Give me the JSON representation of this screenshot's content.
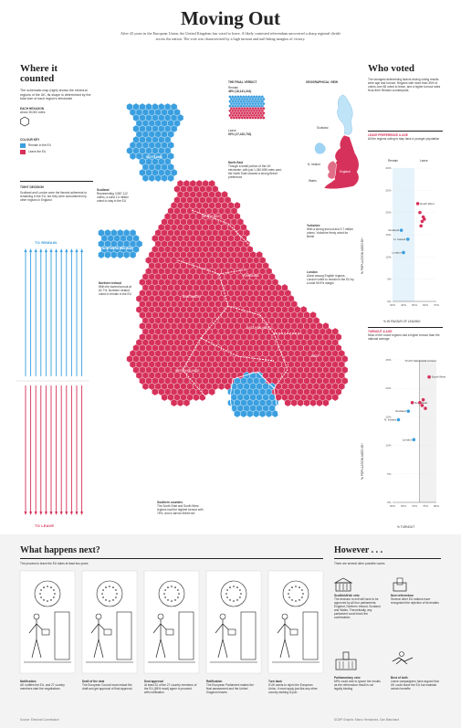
{
  "header": {
    "title": "Moving Out",
    "intro": "After 43 years in the European Union, the United Kingdom has voted to leave. A likely contested referendum uncovered a sharp regional divide across the nation. The vote was characterised by a high turnout and nail-biting margins of victory."
  },
  "colors": {
    "leave": "#d6315a",
    "remain": "#3a9fe0",
    "ink": "#222222"
  },
  "where_counted": {
    "heading": "Where it counted",
    "desc": "The schematic map (right) shows the electoral regions of the UK, its shape is determined by the total size of each region's electorate",
    "hex_label": "EACH HEXAGON",
    "hex_value": "About 35,000 votes",
    "key_title": "COLOUR KEY",
    "key_remain": "Remain in the EU",
    "key_leave": "Leave the EU"
  },
  "tight": {
    "heading": "TIGHT DECISION",
    "desc": "Scotland and London were the fiercest adherents to remaining in the EU, but they were outnumbered by other regions in England",
    "to_remain": "TO REMAIN",
    "to_leave": "TO LEAVE"
  },
  "verdict": {
    "heading": "THE FINAL VERDICT",
    "remain_label": "Remain",
    "remain_value": "48% (16,141,241)",
    "leave_label": "Leave",
    "leave_value": "52% (17,410,742)"
  },
  "geo": {
    "heading": "GEOGRAPHICAL VIEW",
    "labels": [
      "Scotland",
      "N. Ireland",
      "Wales",
      "England"
    ]
  },
  "map": {
    "regions": [
      "SCOTLAND",
      "NORTHERN IRELAND",
      "NORTH EAST",
      "NORTHWEST",
      "YORKSHIRE",
      "EAST MIDLANDS",
      "WEST MIDLANDS",
      "EAST",
      "WALES",
      "LONDON",
      "SOUTH WEST",
      "SOUTH EAST"
    ]
  },
  "annotations": {
    "scotland": {
      "title": "Scotland",
      "text": "Representing 3,987,112 voters, a solid 1.6 million voted to stay in the EU"
    },
    "northeast": {
      "title": "North East",
      "text": "Though a small portion of the UK electorate, with just 1,340,698 votes cast, the North East showed a strong Brexit preference"
    },
    "ni": {
      "title": "Northern Ireland",
      "text": "With the lowest turnout at 62.7%, Northern Ireland voted to remain in the EU"
    },
    "yorkshire": {
      "title": "Yorkshire",
      "text": "With a strong turnout and 3.7 million voters, Yorkshire firmly voted for Brexit"
    },
    "london": {
      "title": "London",
      "text": "Alone among English regions, London voted to remain in the EU by a solid 59.9% margin"
    },
    "southern": {
      "title": "Southern counties",
      "text": "The South East and South West regions had the highest turnout with 76%, and a narrow Brexit win"
    }
  },
  "who_voted": {
    "heading": "Who voted",
    "desc": "The strongest determining factors driving voting results were age and turnout. Regions with more than 35% of voters over 65 voted to leave, and a higher turnout rates fit as their Remain counterparts.",
    "chart1_title": "LEAVE PREFERENCE & AGE",
    "chart1_sub": "All the regions voting to stay have a younger population",
    "chart1_remain": "Remain",
    "chart1_leave": "Leave",
    "chart1_x": "% IN FAVOUR OF LEAVING",
    "chart1_y": "% POPULATION AGED 65+",
    "chart2_title": "TURNOUT & AGE",
    "chart2_sub": "Most of the Leave regions had a higher turnout than the national average",
    "chart2_x": "% TURNOUT",
    "chart2_y": "% POPULATION AGED 65+"
  },
  "chart_data": [
    {
      "type": "scatter",
      "title": "LEAVE PREFERENCE & AGE",
      "xlabel": "% IN FAVOUR OF LEAVING",
      "ylabel": "% POPULATION AGED 65+",
      "xlim": [
        30,
        70
      ],
      "ylim": [
        0,
        30
      ],
      "xticks": [
        "30%",
        "40%",
        "50%",
        "60%",
        "70%"
      ],
      "yticks": [
        "0%",
        "5%",
        "10%",
        "15%",
        "20%",
        "25%",
        "30%"
      ],
      "points": [
        {
          "label": "South West",
          "x": 53,
          "y": 22
        },
        {
          "label": "",
          "x": 55,
          "y": 20
        },
        {
          "label": "",
          "x": 58,
          "y": 19
        },
        {
          "label": "",
          "x": 57,
          "y": 18
        },
        {
          "label": "",
          "x": 59,
          "y": 18.5
        },
        {
          "label": "",
          "x": 56,
          "y": 17
        },
        {
          "label": "Scotland",
          "x": 38,
          "y": 16
        },
        {
          "label": "N. Ireland",
          "x": 44,
          "y": 14
        },
        {
          "label": "London",
          "x": 40,
          "y": 11
        }
      ]
    },
    {
      "type": "scatter",
      "title": "TURNOUT & AGE",
      "xlabel": "% TURNOUT",
      "ylabel": "% POPULATION AGED 65+",
      "xlim": [
        60,
        80
      ],
      "ylim": [
        0,
        25
      ],
      "xticks": [
        "60%",
        "65%",
        "70%",
        "75%",
        "80%"
      ],
      "yticks": [
        "0%",
        "5%",
        "10%",
        "15%",
        "20%",
        "25%"
      ],
      "reference_label": "72.2% Nationwide turnout",
      "points": [
        {
          "label": "South West",
          "x": 76.7,
          "y": 22
        },
        {
          "label": "North East",
          "x": 69,
          "y": 17.5
        },
        {
          "label": "",
          "x": 72.5,
          "y": 17.5
        },
        {
          "label": "",
          "x": 73.5,
          "y": 17
        },
        {
          "label": "",
          "x": 74,
          "y": 18
        },
        {
          "label": "",
          "x": 75,
          "y": 16.5
        },
        {
          "label": "Scotland",
          "x": 67.2,
          "y": 16
        },
        {
          "label": "N. Ireland",
          "x": 62.7,
          "y": 14.5
        },
        {
          "label": "London",
          "x": 69.7,
          "y": 11
        }
      ]
    }
  ],
  "next": {
    "heading": "What happens next?",
    "sub": "The process to leave the EU takes at least two years",
    "steps": [
      {
        "title": "Notification",
        "text": "UK notifies the EU, and 27 country members start the negotiations"
      },
      {
        "title": "Draft of the deal",
        "text": "The European Council must redact the draft and get approval of final approval"
      },
      {
        "title": "Deal approval",
        "text": "At least 20 of the 27 country members of the EU (65% must) agree to proceed with notification"
      },
      {
        "title": "Ratification",
        "text": "The European Parliament makes the final assessment and the United Kingdom leaves"
      },
      {
        "title": "Turn back",
        "text": "If UK wants to rejoin the European Union, it must apply just like any other country wishing to join"
      }
    ],
    "source": "Source: Electoral Commission"
  },
  "however": {
    "heading": "However . . .",
    "sub": "There are several other possible routes",
    "items": [
      {
        "title": "Scottish/Irish veto",
        "text": "The decision to exit will have to be approved by all four parliaments: England, Northern Ireland, Scotland and Wales. Theoretically, any parliament could block the confirmation"
      },
      {
        "title": "New referendum",
        "text": "Several other EU nations have recognised the rejection of its treaties"
      },
      {
        "title": "Parliamentary veto",
        "text": "MPs could vote to ignore the results as the referendum result is not legally binding"
      },
      {
        "title": "Best of both",
        "text": "Leave campaigners have argued that UK could leave the EU but maintain certain benefits"
      }
    ],
    "credit": "SCMP Graphic: Marco Hernández, Dan Blanchard"
  }
}
